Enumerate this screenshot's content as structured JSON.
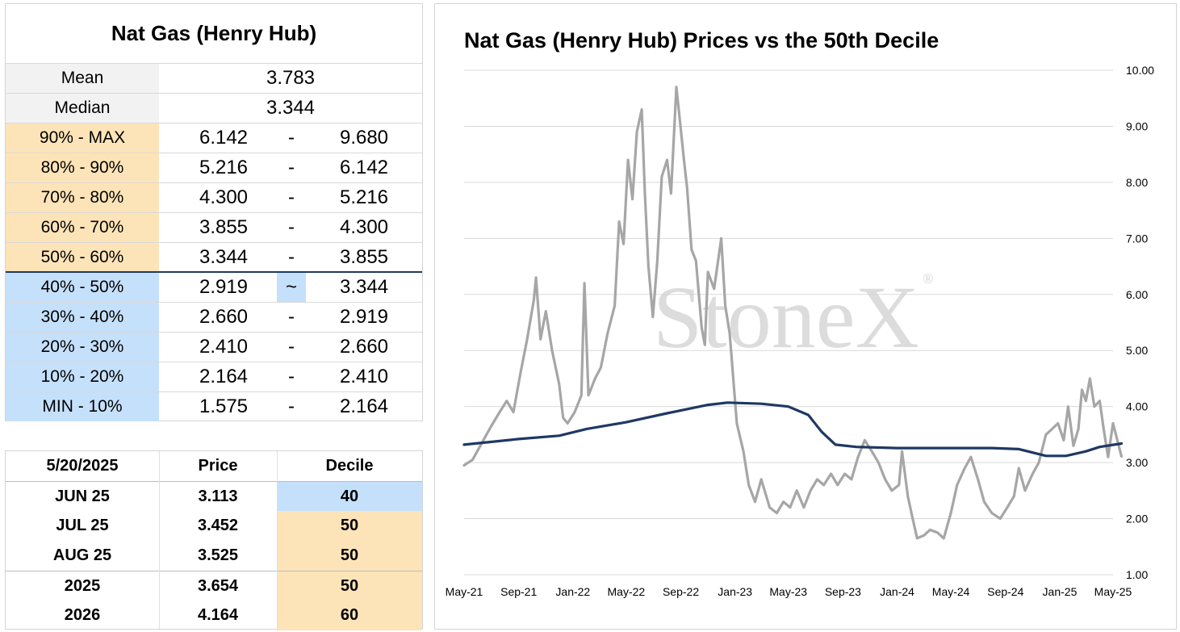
{
  "stats": {
    "title": "Nat Gas (Henry Hub)",
    "mean_label": "Mean",
    "mean": "3.783",
    "median_label": "Median",
    "median": "3.344",
    "deciles": [
      {
        "label": "90% - MAX",
        "low": "6.142",
        "sep": "-",
        "high": "9.680"
      },
      {
        "label": "80% - 90%",
        "low": "5.216",
        "sep": "-",
        "high": "6.142"
      },
      {
        "label": "70% - 80%",
        "low": "4.300",
        "sep": "-",
        "high": "5.216"
      },
      {
        "label": "60% - 70%",
        "low": "3.855",
        "sep": "-",
        "high": "4.300"
      },
      {
        "label": "50% - 60%",
        "low": "3.344",
        "sep": "-",
        "high": "3.855"
      },
      {
        "label": "40% - 50%",
        "low": "2.919",
        "sep": "~",
        "high": "3.344"
      },
      {
        "label": "30% - 40%",
        "low": "2.660",
        "sep": "-",
        "high": "2.919"
      },
      {
        "label": "20% - 30%",
        "low": "2.410",
        "sep": "-",
        "high": "2.660"
      },
      {
        "label": "10% - 20%",
        "low": "2.164",
        "sep": "-",
        "high": "2.410"
      },
      {
        "label": "MIN - 10%",
        "low": "1.575",
        "sep": "-",
        "high": "2.164"
      }
    ]
  },
  "prices": {
    "header": {
      "date": "5/20/2025",
      "price": "Price",
      "decile": "Decile"
    },
    "rows": [
      {
        "contract": "JUN 25",
        "price": "3.113",
        "decile": "40"
      },
      {
        "contract": "JUL 25",
        "price": "3.452",
        "decile": "50"
      },
      {
        "contract": "AUG 25",
        "price": "3.525",
        "decile": "50"
      },
      {
        "contract": "2025",
        "price": "3.654",
        "decile": "50"
      },
      {
        "contract": "2026",
        "price": "4.164",
        "decile": "60"
      }
    ]
  },
  "colors": {
    "above_median": "#fde4b8",
    "below_median": "#c5e0fb",
    "price_line": "#a6a6a6",
    "decile_line": "#1f3864"
  },
  "chart_data": {
    "type": "line",
    "title": "Nat Gas (Henry Hub) Prices vs the 50th Decile",
    "watermark": "StoneX",
    "watermark_mark": "®",
    "x_ticks": [
      "May-21",
      "Sep-21",
      "Jan-22",
      "May-22",
      "Sep-22",
      "Jan-23",
      "May-23",
      "Sep-23",
      "Jan-24",
      "May-24",
      "Sep-24",
      "Jan-25",
      "May-25"
    ],
    "y_ticks": [
      "10.00",
      "9.00",
      "8.00",
      "7.00",
      "6.00",
      "5.00",
      "4.00",
      "3.00",
      "2.00",
      "1.00"
    ],
    "ylim": [
      1,
      10
    ],
    "y_axis_position": "right",
    "grid": "horizontal",
    "legend": "none",
    "series": [
      {
        "role": "price",
        "points": [
          [
            "2021-05-01",
            2.95
          ],
          [
            "2021-05-20",
            3.05
          ],
          [
            "2021-06-10",
            3.35
          ],
          [
            "2021-07-01",
            3.65
          ],
          [
            "2021-07-20",
            3.9
          ],
          [
            "2021-08-05",
            4.1
          ],
          [
            "2021-08-20",
            3.9
          ],
          [
            "2021-09-05",
            4.6
          ],
          [
            "2021-09-20",
            5.2
          ],
          [
            "2021-10-05",
            5.9
          ],
          [
            "2021-10-10",
            6.3
          ],
          [
            "2021-10-20",
            5.2
          ],
          [
            "2021-11-01",
            5.7
          ],
          [
            "2021-11-15",
            5.0
          ],
          [
            "2021-12-01",
            4.4
          ],
          [
            "2021-12-10",
            3.8
          ],
          [
            "2021-12-20",
            3.7
          ],
          [
            "2022-01-05",
            3.9
          ],
          [
            "2022-01-20",
            4.2
          ],
          [
            "2022-01-27",
            6.2
          ],
          [
            "2022-02-05",
            4.2
          ],
          [
            "2022-02-20",
            4.5
          ],
          [
            "2022-03-05",
            4.7
          ],
          [
            "2022-03-20",
            5.3
          ],
          [
            "2022-04-05",
            5.8
          ],
          [
            "2022-04-15",
            7.3
          ],
          [
            "2022-04-25",
            6.9
          ],
          [
            "2022-05-05",
            8.4
          ],
          [
            "2022-05-15",
            7.7
          ],
          [
            "2022-05-25",
            8.9
          ],
          [
            "2022-06-05",
            9.3
          ],
          [
            "2022-06-12",
            7.8
          ],
          [
            "2022-06-20",
            6.5
          ],
          [
            "2022-06-30",
            5.6
          ],
          [
            "2022-07-10",
            6.6
          ],
          [
            "2022-07-20",
            8.1
          ],
          [
            "2022-08-01",
            8.4
          ],
          [
            "2022-08-10",
            7.8
          ],
          [
            "2022-08-22",
            9.7
          ],
          [
            "2022-08-30",
            9.1
          ],
          [
            "2022-09-08",
            8.4
          ],
          [
            "2022-09-15",
            7.9
          ],
          [
            "2022-09-25",
            6.8
          ],
          [
            "2022-10-05",
            6.6
          ],
          [
            "2022-10-18",
            5.4
          ],
          [
            "2022-10-25",
            5.1
          ],
          [
            "2022-11-01",
            6.4
          ],
          [
            "2022-11-15",
            6.1
          ],
          [
            "2022-12-01",
            7.0
          ],
          [
            "2022-12-10",
            5.8
          ],
          [
            "2022-12-20",
            5.3
          ],
          [
            "2023-01-05",
            3.7
          ],
          [
            "2023-01-20",
            3.2
          ],
          [
            "2023-02-01",
            2.6
          ],
          [
            "2023-02-15",
            2.3
          ],
          [
            "2023-03-01",
            2.7
          ],
          [
            "2023-03-20",
            2.2
          ],
          [
            "2023-04-05",
            2.1
          ],
          [
            "2023-04-20",
            2.3
          ],
          [
            "2023-05-05",
            2.2
          ],
          [
            "2023-05-20",
            2.5
          ],
          [
            "2023-06-05",
            2.2
          ],
          [
            "2023-06-20",
            2.5
          ],
          [
            "2023-07-05",
            2.7
          ],
          [
            "2023-07-20",
            2.6
          ],
          [
            "2023-08-05",
            2.8
          ],
          [
            "2023-08-20",
            2.6
          ],
          [
            "2023-09-05",
            2.8
          ],
          [
            "2023-09-20",
            2.7
          ],
          [
            "2023-10-05",
            3.1
          ],
          [
            "2023-10-20",
            3.4
          ],
          [
            "2023-11-05",
            3.2
          ],
          [
            "2023-11-20",
            3.0
          ],
          [
            "2023-12-05",
            2.7
          ],
          [
            "2023-12-20",
            2.5
          ],
          [
            "2024-01-05",
            2.6
          ],
          [
            "2024-01-12",
            3.2
          ],
          [
            "2024-01-25",
            2.4
          ],
          [
            "2024-02-05",
            2.0
          ],
          [
            "2024-02-15",
            1.65
          ],
          [
            "2024-03-01",
            1.7
          ],
          [
            "2024-03-15",
            1.8
          ],
          [
            "2024-04-01",
            1.75
          ],
          [
            "2024-04-15",
            1.65
          ],
          [
            "2024-05-01",
            2.1
          ],
          [
            "2024-05-15",
            2.6
          ],
          [
            "2024-06-01",
            2.9
          ],
          [
            "2024-06-15",
            3.1
          ],
          [
            "2024-07-01",
            2.7
          ],
          [
            "2024-07-15",
            2.3
          ],
          [
            "2024-08-01",
            2.1
          ],
          [
            "2024-08-20",
            2.0
          ],
          [
            "2024-09-05",
            2.2
          ],
          [
            "2024-09-20",
            2.4
          ],
          [
            "2024-10-01",
            2.9
          ],
          [
            "2024-10-15",
            2.5
          ],
          [
            "2024-11-01",
            2.8
          ],
          [
            "2024-11-15",
            3.0
          ],
          [
            "2024-12-01",
            3.5
          ],
          [
            "2024-12-15",
            3.6
          ],
          [
            "2024-12-28",
            3.7
          ],
          [
            "2025-01-10",
            3.4
          ],
          [
            "2025-01-20",
            4.0
          ],
          [
            "2025-02-01",
            3.3
          ],
          [
            "2025-02-12",
            3.6
          ],
          [
            "2025-02-20",
            4.3
          ],
          [
            "2025-03-01",
            4.1
          ],
          [
            "2025-03-10",
            4.5
          ],
          [
            "2025-03-20",
            4.0
          ],
          [
            "2025-04-01",
            4.1
          ],
          [
            "2025-04-10",
            3.6
          ],
          [
            "2025-04-20",
            3.1
          ],
          [
            "2025-05-01",
            3.7
          ],
          [
            "2025-05-20",
            3.11
          ]
        ]
      },
      {
        "role": "50th decile",
        "points": [
          [
            "2021-05-01",
            3.32
          ],
          [
            "2021-09-01",
            3.42
          ],
          [
            "2021-12-01",
            3.48
          ],
          [
            "2022-02-01",
            3.6
          ],
          [
            "2022-05-01",
            3.72
          ],
          [
            "2022-08-01",
            3.88
          ],
          [
            "2022-11-01",
            4.03
          ],
          [
            "2022-12-15",
            4.07
          ],
          [
            "2023-03-01",
            4.05
          ],
          [
            "2023-05-01",
            4.0
          ],
          [
            "2023-06-15",
            3.85
          ],
          [
            "2023-07-15",
            3.55
          ],
          [
            "2023-08-15",
            3.32
          ],
          [
            "2023-10-01",
            3.28
          ],
          [
            "2024-01-01",
            3.26
          ],
          [
            "2024-08-01",
            3.26
          ],
          [
            "2024-10-01",
            3.24
          ],
          [
            "2024-12-01",
            3.12
          ],
          [
            "2025-01-15",
            3.12
          ],
          [
            "2025-03-01",
            3.2
          ],
          [
            "2025-04-01",
            3.28
          ],
          [
            "2025-05-20",
            3.34
          ]
        ]
      }
    ]
  }
}
